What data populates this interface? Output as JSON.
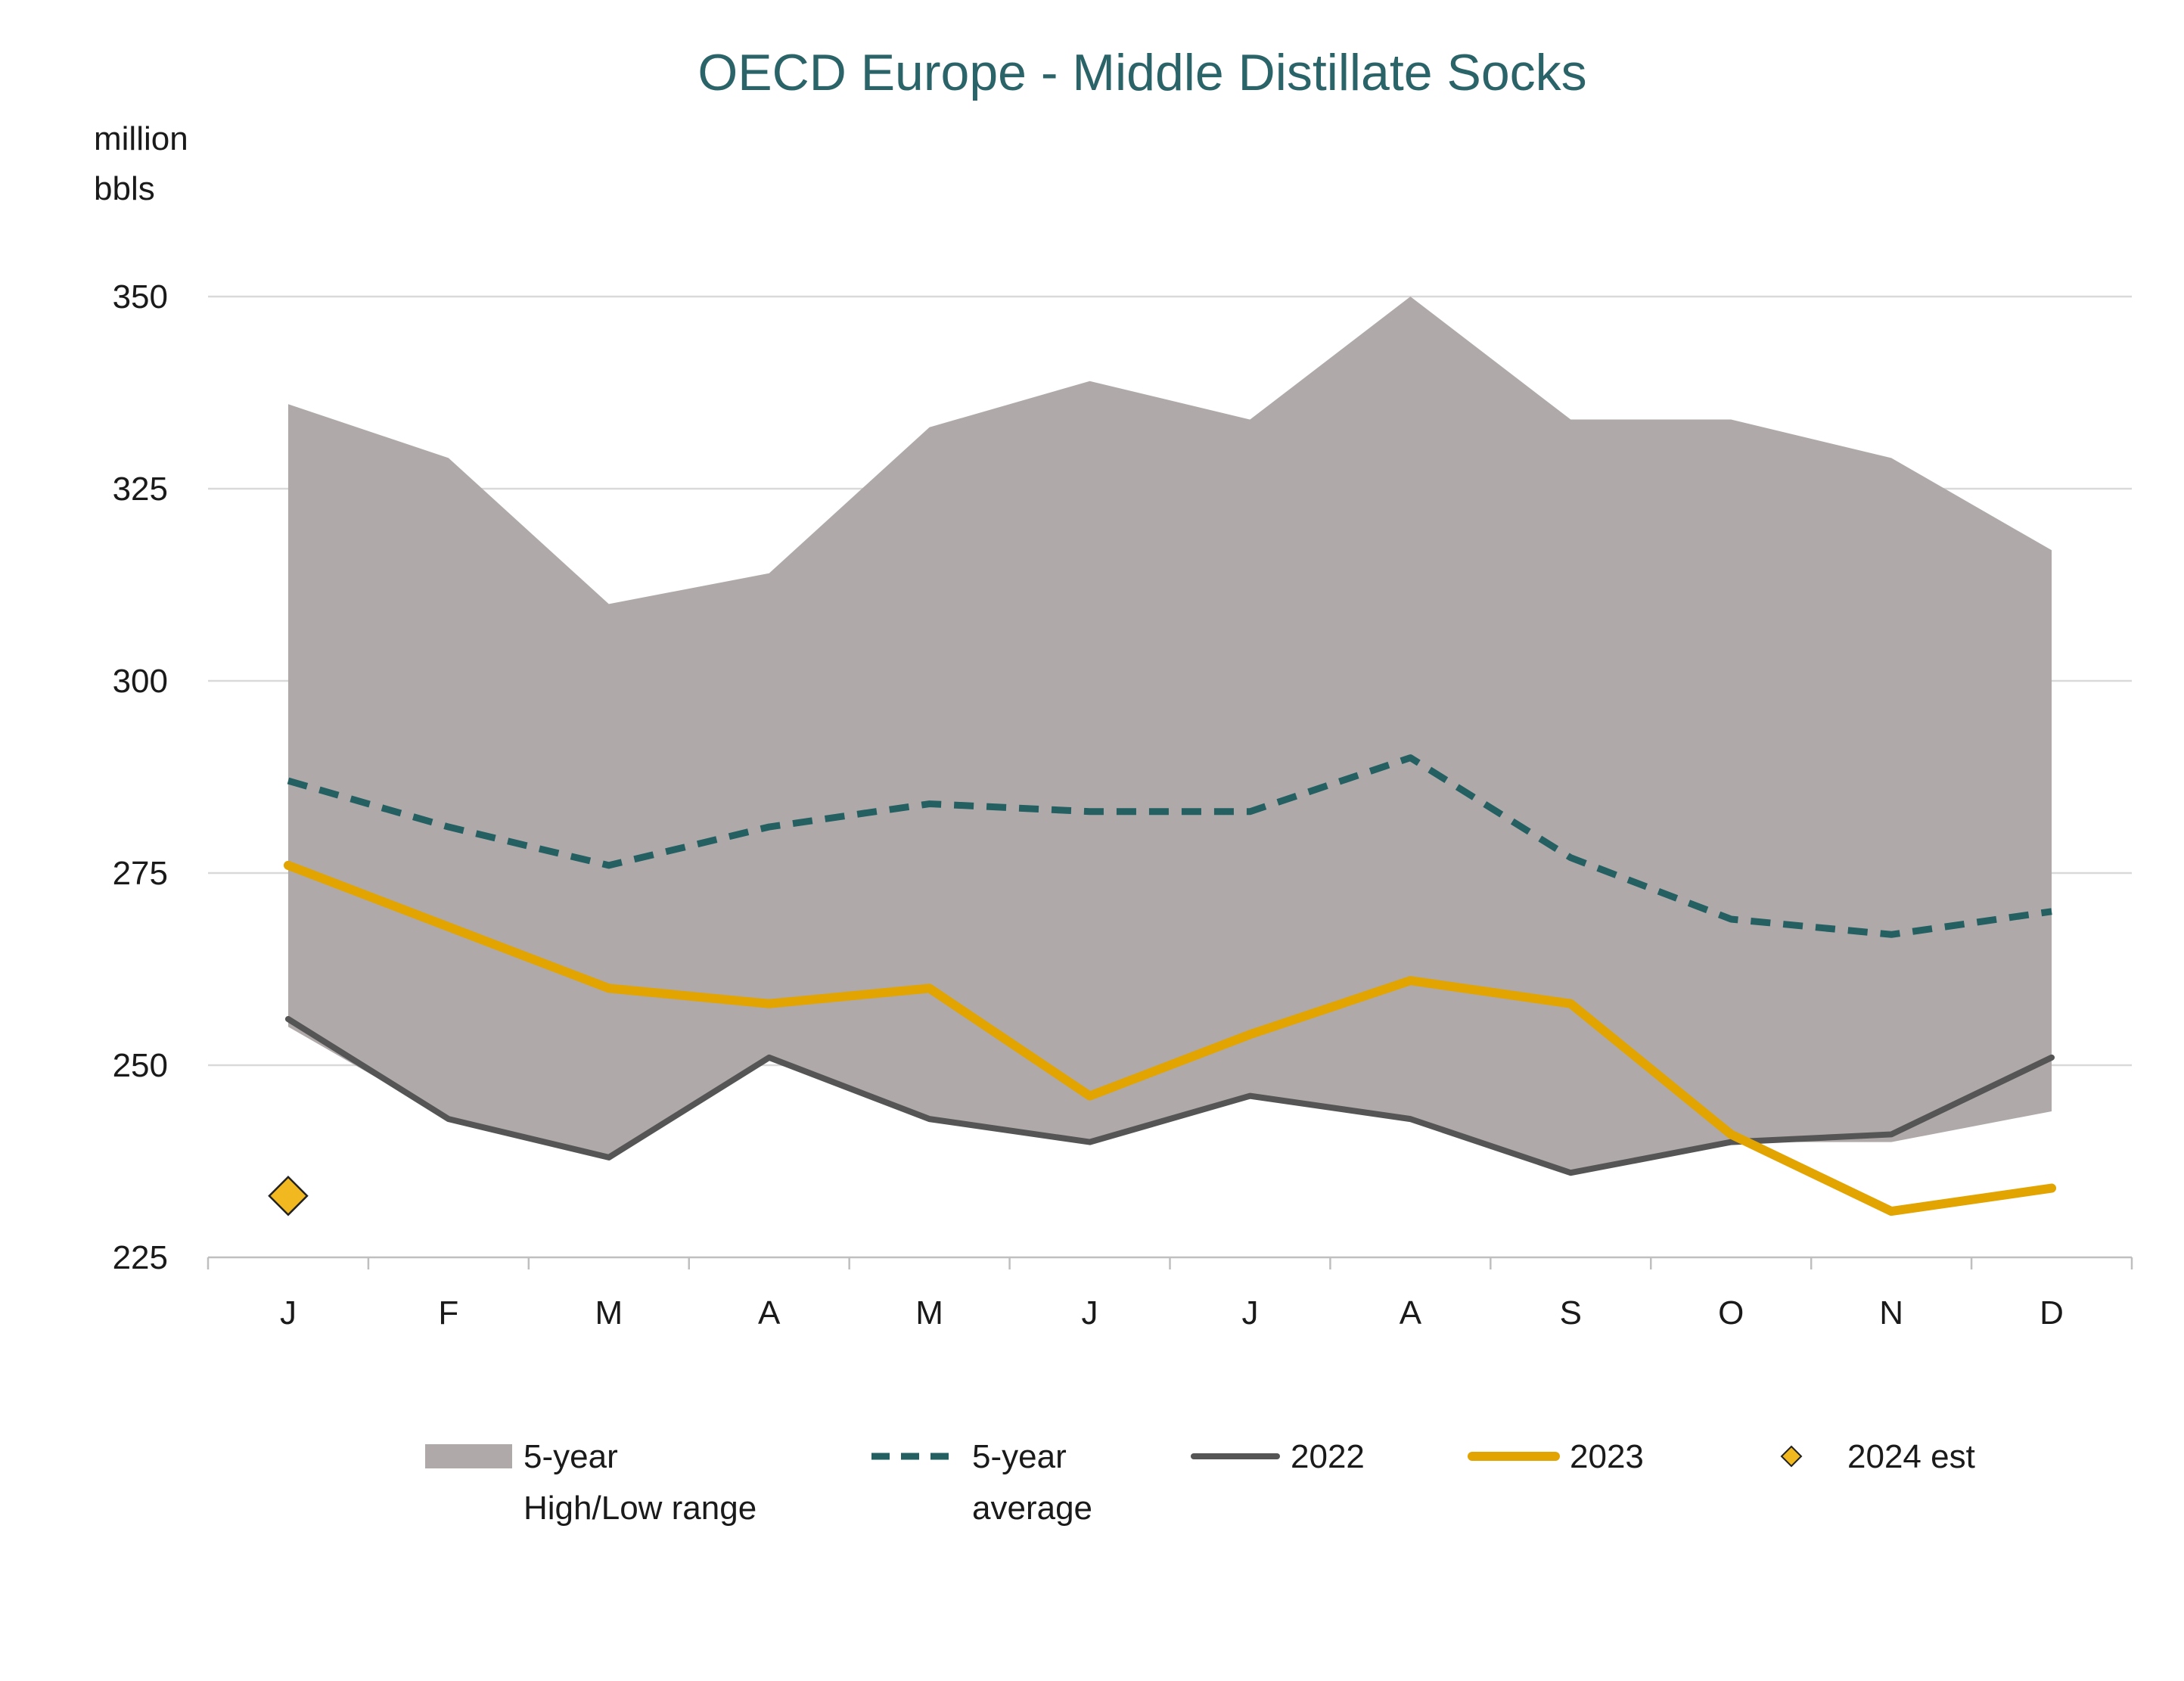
{
  "chart_data": {
    "type": "line",
    "title": "OECD Europe - Middle Distillate Socks",
    "ylabel_lines": [
      "million",
      "bbls"
    ],
    "xlabel": "",
    "categories": [
      "J",
      "F",
      "M",
      "A",
      "M",
      "J",
      "J",
      "A",
      "S",
      "O",
      "N",
      "D"
    ],
    "ylim": [
      225,
      350
    ],
    "yticks": [
      225,
      250,
      275,
      300,
      325,
      350
    ],
    "grid": true,
    "legend_position": "bottom",
    "range": {
      "name_lines": [
        "5-year",
        "High/Low range"
      ],
      "high": [
        336,
        329,
        310,
        314,
        333,
        339,
        334,
        350,
        334,
        334,
        329,
        317
      ],
      "low": [
        255,
        243,
        238,
        251,
        243,
        240,
        246,
        243,
        236,
        240,
        240,
        244
      ],
      "color": "#afaaa9"
    },
    "series": [
      {
        "name_lines": [
          "5-year",
          "average"
        ],
        "style": "dashed",
        "color": "#245f62",
        "values": [
          287,
          281,
          276,
          281,
          284,
          283,
          283,
          290,
          277,
          269,
          267,
          270
        ]
      },
      {
        "name_lines": [
          "2022"
        ],
        "style": "solid",
        "color": "#555555",
        "values": [
          256,
          243,
          238,
          251,
          243,
          240,
          246,
          243,
          236,
          240,
          241,
          251
        ]
      },
      {
        "name_lines": [
          "2023"
        ],
        "style": "solid-thick",
        "color": "#e2a400",
        "values": [
          276,
          268,
          260,
          258,
          260,
          246,
          254,
          261,
          258,
          241,
          231,
          234
        ]
      }
    ],
    "markers": [
      {
        "name_lines": [
          "2024 est"
        ],
        "color": "#f2b820",
        "points": [
          {
            "x": "J",
            "y": 233
          }
        ]
      }
    ]
  }
}
